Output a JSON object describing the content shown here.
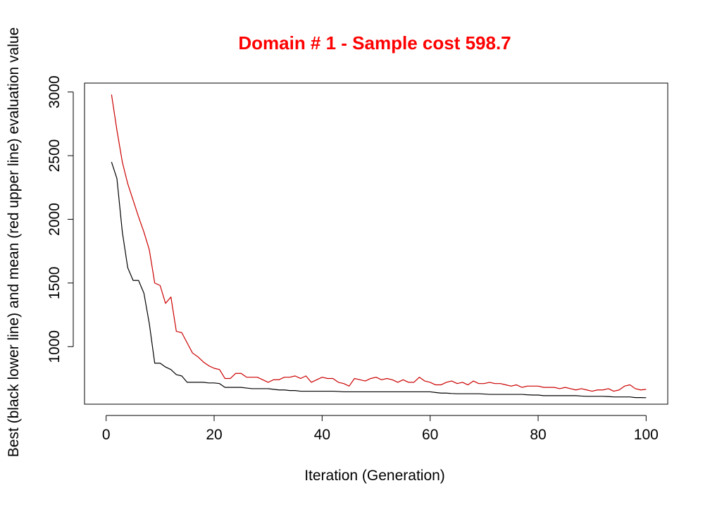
{
  "chart_data": {
    "type": "line",
    "title": "Domain # 1  - Sample cost 598.7",
    "xlabel": "Iteration (Generation)",
    "ylabel": "Best (black lower line) and mean (red upper line) evaluation value",
    "xlim": [
      -4,
      104
    ],
    "ylim": [
      548,
      3070
    ],
    "xticks": [
      0,
      20,
      40,
      60,
      80,
      100
    ],
    "yticks": [
      1000,
      1500,
      2000,
      2500,
      3000
    ],
    "grid": false,
    "legend": "none",
    "colors": {
      "best": "#000000",
      "mean": "#cc0000",
      "title": "#ff0000"
    },
    "series": [
      {
        "key": "best",
        "x": [
          1,
          2,
          3,
          4,
          5,
          6,
          7,
          8,
          9,
          10,
          11,
          12,
          13,
          14,
          15,
          16,
          17,
          18,
          19,
          20,
          21,
          22,
          23,
          24,
          25,
          26,
          27,
          28,
          29,
          30,
          31,
          32,
          33,
          34,
          35,
          36,
          37,
          38,
          39,
          40,
          41,
          42,
          43,
          44,
          45,
          46,
          47,
          48,
          49,
          50,
          51,
          52,
          53,
          54,
          55,
          56,
          57,
          58,
          59,
          60,
          61,
          62,
          63,
          64,
          65,
          66,
          67,
          68,
          69,
          70,
          71,
          72,
          73,
          74,
          75,
          76,
          77,
          78,
          79,
          80,
          81,
          82,
          83,
          84,
          85,
          86,
          87,
          88,
          89,
          90,
          91,
          92,
          93,
          94,
          95,
          96,
          97,
          98,
          99,
          100
        ],
        "values": [
          2450,
          2320,
          1900,
          1620,
          1520,
          1520,
          1420,
          1180,
          870,
          870,
          840,
          820,
          780,
          770,
          720,
          720,
          720,
          720,
          715,
          715,
          710,
          680,
          680,
          680,
          680,
          675,
          670,
          670,
          670,
          670,
          665,
          660,
          660,
          655,
          655,
          650,
          650,
          650,
          650,
          650,
          650,
          650,
          648,
          645,
          645,
          645,
          645,
          645,
          645,
          645,
          645,
          645,
          645,
          645,
          645,
          645,
          645,
          645,
          645,
          645,
          640,
          635,
          635,
          632,
          630,
          630,
          630,
          630,
          630,
          628,
          625,
          625,
          625,
          625,
          625,
          625,
          625,
          622,
          620,
          620,
          615,
          615,
          615,
          615,
          615,
          615,
          615,
          612,
          610,
          610,
          610,
          610,
          608,
          605,
          605,
          605,
          605,
          600,
          600,
          598.7
        ]
      },
      {
        "key": "mean",
        "x": [
          1,
          2,
          3,
          4,
          5,
          6,
          7,
          8,
          9,
          10,
          11,
          12,
          13,
          14,
          15,
          16,
          17,
          18,
          19,
          20,
          21,
          22,
          23,
          24,
          25,
          26,
          27,
          28,
          29,
          30,
          31,
          32,
          33,
          34,
          35,
          36,
          37,
          38,
          39,
          40,
          41,
          42,
          43,
          44,
          45,
          46,
          47,
          48,
          49,
          50,
          51,
          52,
          53,
          54,
          55,
          56,
          57,
          58,
          59,
          60,
          61,
          62,
          63,
          64,
          65,
          66,
          67,
          68,
          69,
          70,
          71,
          72,
          73,
          74,
          75,
          76,
          77,
          78,
          79,
          80,
          81,
          82,
          83,
          84,
          85,
          86,
          87,
          88,
          89,
          90,
          91,
          92,
          93,
          94,
          95,
          96,
          97,
          98,
          99,
          100
        ],
        "values": [
          2980,
          2700,
          2450,
          2280,
          2150,
          2020,
          1900,
          1760,
          1500,
          1480,
          1340,
          1390,
          1120,
          1110,
          1030,
          950,
          920,
          880,
          850,
          830,
          820,
          750,
          750,
          790,
          790,
          760,
          760,
          760,
          740,
          720,
          740,
          740,
          760,
          760,
          770,
          750,
          770,
          720,
          740,
          760,
          750,
          750,
          720,
          710,
          690,
          750,
          740,
          730,
          750,
          760,
          740,
          750,
          740,
          720,
          740,
          720,
          720,
          760,
          730,
          720,
          700,
          700,
          720,
          730,
          710,
          720,
          700,
          730,
          710,
          710,
          720,
          710,
          710,
          700,
          690,
          700,
          680,
          690,
          690,
          690,
          680,
          680,
          680,
          670,
          680,
          670,
          660,
          670,
          660,
          650,
          660,
          660,
          670,
          650,
          660,
          690,
          700,
          670,
          660,
          665
        ]
      }
    ]
  }
}
